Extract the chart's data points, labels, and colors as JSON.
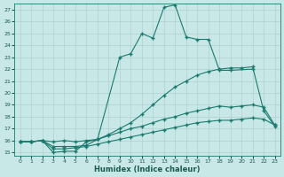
{
  "xlabel": "Humidex (Indice chaleur)",
  "bg_color": "#c8e8e8",
  "line_color": "#1a7a6e",
  "grid_color": "#b0d0d0",
  "xlim": [
    -0.5,
    23.5
  ],
  "ylim": [
    14.7,
    27.5
  ],
  "yticks": [
    15,
    16,
    17,
    18,
    19,
    20,
    21,
    22,
    23,
    24,
    25,
    26,
    27
  ],
  "xticks": [
    0,
    1,
    2,
    3,
    4,
    5,
    6,
    7,
    8,
    9,
    10,
    11,
    12,
    13,
    14,
    15,
    16,
    17,
    18,
    19,
    20,
    21,
    22,
    23
  ],
  "line1_x": [
    0,
    1,
    2,
    3,
    4,
    5,
    6,
    7,
    9,
    10,
    11,
    12,
    13,
    14,
    15,
    16,
    17,
    18,
    19,
    21
  ],
  "line1_y": [
    15.9,
    15.9,
    16.0,
    15.0,
    15.1,
    15.1,
    15.9,
    16.1,
    23.0,
    23.3,
    25.0,
    24.6,
    27.2,
    27.4,
    24.7,
    24.5,
    24.5,
    21.9,
    21.9,
    22.0
  ],
  "line2_x": [
    0,
    1,
    2,
    3,
    4,
    5,
    6,
    7,
    8,
    9,
    10,
    11,
    12,
    13,
    14,
    15,
    16,
    17,
    18,
    19,
    20,
    21,
    22,
    23
  ],
  "line2_y": [
    15.9,
    15.9,
    16.0,
    15.9,
    16.0,
    15.9,
    16.0,
    16.1,
    16.5,
    17.0,
    17.5,
    18.2,
    19.0,
    19.8,
    20.5,
    21.0,
    21.5,
    21.8,
    22.0,
    22.1,
    22.1,
    22.2,
    18.5,
    17.2
  ],
  "line3_x": [
    0,
    1,
    2,
    3,
    4,
    5,
    6,
    7,
    8,
    9,
    10,
    11,
    12,
    13,
    14,
    15,
    16,
    17,
    18,
    19,
    20,
    21,
    22,
    23
  ],
  "line3_y": [
    15.9,
    15.9,
    16.0,
    15.5,
    15.5,
    15.5,
    15.6,
    16.1,
    16.4,
    16.7,
    17.0,
    17.2,
    17.5,
    17.8,
    18.0,
    18.3,
    18.5,
    18.7,
    18.9,
    18.8,
    18.9,
    19.0,
    18.8,
    17.3
  ],
  "line4_x": [
    0,
    1,
    2,
    3,
    4,
    5,
    6,
    7,
    8,
    9,
    10,
    11,
    12,
    13,
    14,
    15,
    16,
    17,
    18,
    19,
    20,
    21,
    22,
    23
  ],
  "line4_y": [
    15.9,
    15.9,
    16.0,
    15.3,
    15.3,
    15.4,
    15.5,
    15.7,
    15.9,
    16.1,
    16.3,
    16.5,
    16.7,
    16.9,
    17.1,
    17.3,
    17.5,
    17.6,
    17.7,
    17.7,
    17.8,
    17.9,
    17.8,
    17.3
  ]
}
